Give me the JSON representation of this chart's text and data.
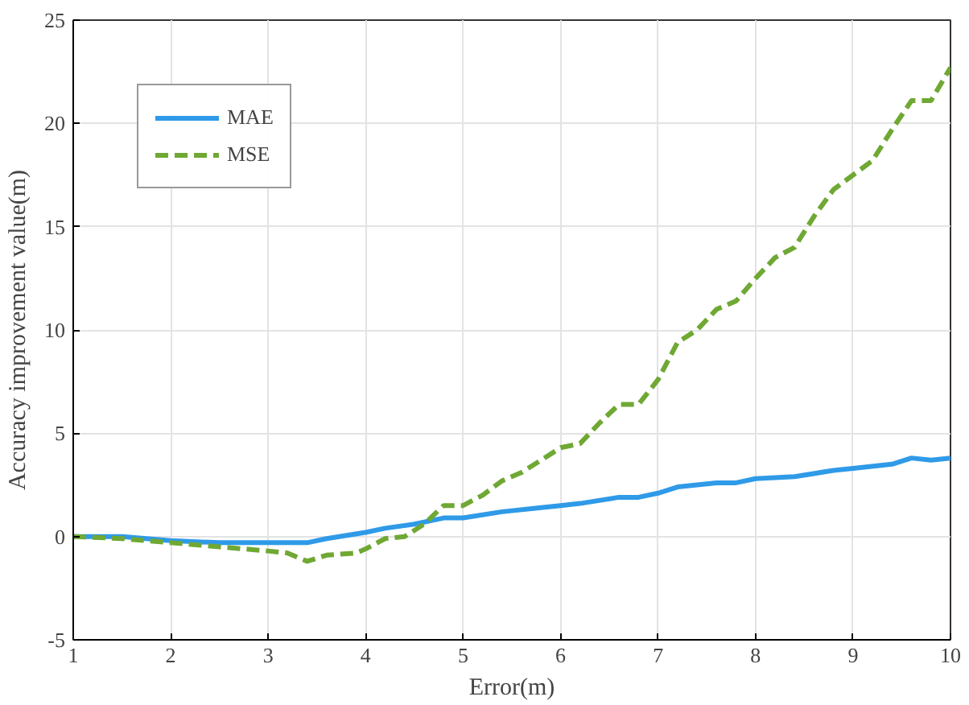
{
  "chart_data": {
    "type": "line",
    "xlabel": "Error(m)",
    "ylabel": "Accuracy improvement value(m)",
    "xlim": [
      1,
      10
    ],
    "ylim": [
      -5,
      25
    ],
    "xticks": [
      1,
      2,
      3,
      4,
      5,
      6,
      7,
      8,
      9,
      10
    ],
    "yticks": [
      -5,
      0,
      5,
      10,
      15,
      20,
      25
    ],
    "grid": true,
    "legend": "top left",
    "series": [
      {
        "name": "MAE",
        "color": "#2f9ae8",
        "line_style": "solid",
        "x": [
          1,
          1.5,
          2,
          2.5,
          3,
          3.4,
          3.6,
          4,
          4.2,
          4.5,
          4.8,
          5,
          5.4,
          5.8,
          6,
          6.2,
          6.6,
          6.8,
          7,
          7.2,
          7.6,
          7.8,
          8,
          8.4,
          8.8,
          9,
          9.4,
          9.6,
          9.8,
          10
        ],
        "values": [
          0,
          0,
          -0.2,
          -0.3,
          -0.3,
          -0.3,
          -0.1,
          0.2,
          0.4,
          0.6,
          0.9,
          0.9,
          1.2,
          1.4,
          1.5,
          1.6,
          1.9,
          1.9,
          2.1,
          2.4,
          2.6,
          2.6,
          2.8,
          2.9,
          3.2,
          3.3,
          3.5,
          3.8,
          3.7,
          3.8
        ]
      },
      {
        "name": "MSE",
        "color": "#6fa833",
        "line_style": "dashed",
        "x": [
          1,
          1.5,
          2,
          2.5,
          3,
          3.2,
          3.4,
          3.6,
          3.9,
          4,
          4.2,
          4.4,
          4.6,
          4.8,
          5,
          5.2,
          5.4,
          5.6,
          5.8,
          6,
          6.2,
          6.4,
          6.6,
          6.8,
          7,
          7.2,
          7.4,
          7.6,
          7.8,
          8,
          8.2,
          8.4,
          8.6,
          8.8,
          9,
          9.2,
          9.4,
          9.6,
          9.8,
          10
        ],
        "values": [
          0,
          -0.1,
          -0.3,
          -0.5,
          -0.7,
          -0.8,
          -1.2,
          -0.9,
          -0.8,
          -0.6,
          -0.1,
          0,
          0.6,
          1.5,
          1.5,
          2.0,
          2.7,
          3.1,
          3.7,
          4.3,
          4.5,
          5.5,
          6.4,
          6.4,
          7.6,
          9.4,
          10.0,
          11.0,
          11.4,
          12.5,
          13.5,
          14.0,
          15.5,
          16.8,
          17.5,
          18.2,
          19.7,
          21.1,
          21.1,
          22.7
        ]
      }
    ]
  }
}
